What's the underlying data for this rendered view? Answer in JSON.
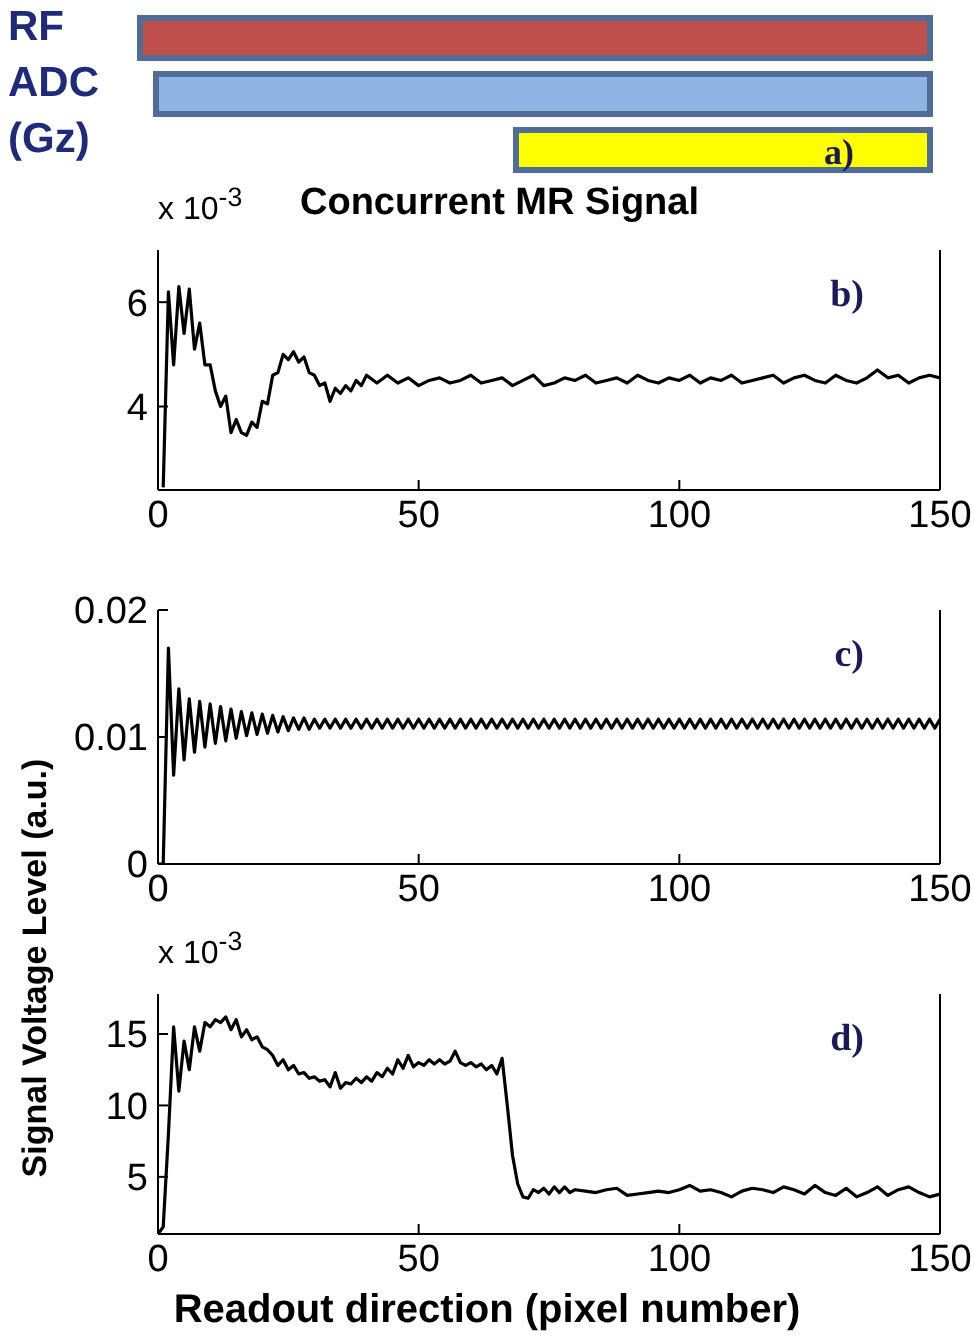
{
  "chart_data": [
    {
      "type": "other",
      "categories": [
        "RF",
        "ADC",
        "(Gz)"
      ],
      "colors": [
        "#c0504d",
        "#8eb4e3",
        "#ffff00"
      ],
      "annotations": [
        "a)"
      ]
    },
    {
      "type": "line",
      "title": "Concurrent MR Signal",
      "annotations": [
        "x 10$^{-3}$",
        "b)"
      ],
      "xlim": [
        0,
        150
      ],
      "xticks": [
        0,
        50,
        100,
        150
      ],
      "ylim": [
        2.4,
        7.0
      ],
      "yticks": [
        4,
        6
      ],
      "series": [
        {
          "color": "#000000",
          "x": [
            1,
            2,
            3,
            4,
            5,
            6,
            7,
            8,
            9,
            10,
            11,
            12,
            13,
            14,
            15,
            16,
            17,
            18,
            19,
            20,
            21,
            22,
            23,
            24,
            25,
            26,
            27,
            28,
            29,
            30,
            31,
            32,
            33,
            34,
            35,
            36,
            37,
            38,
            39,
            40,
            42,
            44,
            46,
            48,
            50,
            52,
            54,
            56,
            58,
            60,
            62,
            64,
            66,
            68,
            70,
            72,
            74,
            76,
            78,
            80,
            82,
            84,
            86,
            88,
            90,
            92,
            94,
            96,
            98,
            100,
            102,
            104,
            106,
            108,
            110,
            112,
            114,
            116,
            118,
            120,
            122,
            124,
            126,
            128,
            130,
            132,
            134,
            136,
            138,
            140,
            142,
            144,
            146,
            148,
            150
          ],
          "values": [
            2.45,
            6.2,
            4.8,
            6.3,
            5.4,
            6.25,
            5.1,
            5.6,
            4.8,
            4.8,
            4.3,
            4.0,
            4.2,
            3.5,
            3.75,
            3.5,
            3.45,
            3.7,
            3.6,
            4.1,
            4.05,
            4.6,
            4.65,
            5.0,
            4.9,
            5.05,
            4.85,
            4.95,
            4.65,
            4.6,
            4.4,
            4.45,
            4.1,
            4.35,
            4.25,
            4.4,
            4.3,
            4.5,
            4.4,
            4.6,
            4.45,
            4.6,
            4.45,
            4.55,
            4.4,
            4.5,
            4.55,
            4.45,
            4.5,
            4.6,
            4.45,
            4.5,
            4.55,
            4.4,
            4.5,
            4.6,
            4.4,
            4.45,
            4.55,
            4.5,
            4.6,
            4.45,
            4.5,
            4.55,
            4.45,
            4.6,
            4.5,
            4.45,
            4.55,
            4.5,
            4.6,
            4.45,
            4.55,
            4.5,
            4.6,
            4.45,
            4.5,
            4.55,
            4.6,
            4.45,
            4.55,
            4.6,
            4.5,
            4.45,
            4.6,
            4.5,
            4.45,
            4.55,
            4.7,
            4.55,
            4.6,
            4.45,
            4.55,
            4.6,
            4.55
          ]
        }
      ]
    },
    {
      "type": "line",
      "annotations": [
        "c)"
      ],
      "xlim": [
        0,
        150
      ],
      "xticks": [
        0,
        50,
        100,
        150
      ],
      "ylim": [
        0,
        0.02
      ],
      "yticks": [
        0,
        0.01,
        0.02
      ],
      "series": [
        {
          "color": "#000000",
          "x": [
            0,
            1,
            2,
            3,
            4,
            5,
            6,
            7,
            8,
            9,
            10,
            11,
            12,
            13,
            14,
            15,
            16,
            17,
            18,
            19,
            20,
            21,
            22,
            23,
            24,
            25,
            26,
            27,
            28,
            29,
            30,
            31,
            32,
            33,
            34,
            35,
            36,
            37,
            38,
            39,
            40,
            41,
            42,
            43,
            44,
            45,
            46,
            47,
            48,
            49,
            50,
            51,
            52,
            53,
            54,
            55,
            56,
            57,
            58,
            59,
            60,
            61,
            62,
            63,
            64,
            65,
            66,
            67,
            68,
            69,
            70,
            71,
            72,
            73,
            74,
            75,
            76,
            77,
            78,
            79,
            80,
            81,
            82,
            83,
            84,
            85,
            86,
            87,
            88,
            89,
            90,
            91,
            92,
            93,
            94,
            95,
            96,
            97,
            98,
            99,
            100,
            101,
            102,
            103,
            104,
            105,
            106,
            107,
            108,
            109,
            110,
            111,
            112,
            113,
            114,
            115,
            116,
            117,
            118,
            119,
            120,
            121,
            122,
            123,
            124,
            125,
            126,
            127,
            128,
            129,
            130,
            131,
            132,
            133,
            134,
            135,
            136,
            137,
            138,
            139,
            140,
            141,
            142,
            143,
            144,
            145,
            146,
            147,
            148,
            149,
            150
          ],
          "values": [
            0,
            0,
            0.017,
            0.007,
            0.0138,
            0.0082,
            0.013,
            0.0088,
            0.0128,
            0.0092,
            0.0126,
            0.0095,
            0.0124,
            0.0097,
            0.0122,
            0.0099,
            0.012,
            0.0101,
            0.0119,
            0.0102,
            0.0118,
            0.0103,
            0.0117,
            0.0104,
            0.0116,
            0.0105,
            0.0115,
            0.0106,
            0.0115,
            0.0106,
            0.0114,
            0.0107,
            0.0114,
            0.0107,
            0.0114,
            0.0107,
            0.0114,
            0.0107,
            0.0114,
            0.0107,
            0.0114,
            0.0107,
            0.0114,
            0.0107,
            0.0114,
            0.0107,
            0.0114,
            0.0107,
            0.0114,
            0.0107,
            0.0114,
            0.0107,
            0.0114,
            0.0107,
            0.0114,
            0.0107,
            0.0114,
            0.0107,
            0.0114,
            0.0107,
            0.0114,
            0.0107,
            0.0114,
            0.0107,
            0.0114,
            0.0107,
            0.0114,
            0.0107,
            0.0114,
            0.0107,
            0.0114,
            0.0107,
            0.0114,
            0.0107,
            0.0114,
            0.0107,
            0.0114,
            0.0107,
            0.0114,
            0.0107,
            0.0114,
            0.0107,
            0.0114,
            0.0107,
            0.0114,
            0.0107,
            0.0114,
            0.0107,
            0.0114,
            0.0107,
            0.0114,
            0.0107,
            0.0114,
            0.0107,
            0.0114,
            0.0107,
            0.0114,
            0.0107,
            0.0114,
            0.0107,
            0.0114,
            0.0107,
            0.0114,
            0.0107,
            0.0114,
            0.0107,
            0.0114,
            0.0107,
            0.0114,
            0.0107,
            0.0114,
            0.0107,
            0.0114,
            0.0107,
            0.0114,
            0.0107,
            0.0114,
            0.0107,
            0.0114,
            0.0107,
            0.0114,
            0.0107,
            0.0114,
            0.0107,
            0.0114,
            0.0107,
            0.0114,
            0.0107,
            0.0114,
            0.0107,
            0.0114,
            0.0107,
            0.0114,
            0.0107,
            0.0114,
            0.0107,
            0.0114,
            0.0107,
            0.0114,
            0.0107,
            0.0114,
            0.0107,
            0.0114,
            0.0107,
            0.0114,
            0.0107,
            0.0114,
            0.0107,
            0.0114,
            0.0107,
            0.0114
          ]
        }
      ]
    },
    {
      "type": "line",
      "xlabel": "Readout direction (pixel number)",
      "ylabel": "Signal Voltage Level (a.u.)",
      "annotations": [
        "x 10$^{-3}$",
        "d)"
      ],
      "xlim": [
        0,
        150
      ],
      "xticks": [
        0,
        50,
        100,
        150
      ],
      "ylim": [
        1,
        17.8
      ],
      "yticks": [
        5,
        10,
        15
      ],
      "series": [
        {
          "color": "#000000",
          "x": [
            0,
            1,
            2,
            3,
            4,
            5,
            6,
            7,
            8,
            9,
            10,
            11,
            12,
            13,
            14,
            15,
            16,
            17,
            18,
            19,
            20,
            21,
            22,
            23,
            24,
            25,
            26,
            27,
            28,
            29,
            30,
            31,
            32,
            33,
            34,
            35,
            36,
            37,
            38,
            39,
            40,
            41,
            42,
            43,
            44,
            45,
            46,
            47,
            48,
            49,
            50,
            51,
            52,
            53,
            54,
            55,
            56,
            57,
            58,
            59,
            60,
            61,
            62,
            63,
            64,
            65,
            66,
            67,
            68,
            69,
            70,
            71,
            72,
            73,
            74,
            75,
            76,
            77,
            78,
            79,
            80,
            82,
            84,
            86,
            88,
            90,
            92,
            94,
            96,
            98,
            100,
            102,
            104,
            106,
            108,
            110,
            112,
            114,
            116,
            118,
            120,
            122,
            124,
            126,
            128,
            130,
            132,
            134,
            136,
            138,
            140,
            142,
            144,
            146,
            148,
            150
          ],
          "values": [
            1.0,
            1.5,
            8,
            15.5,
            11,
            14.5,
            12.5,
            15.5,
            13.8,
            15.8,
            15.5,
            16.0,
            15.8,
            16.2,
            15.3,
            16.0,
            14.8,
            15.3,
            14.6,
            14.8,
            14.1,
            13.9,
            13.5,
            12.8,
            13.2,
            12.5,
            12.8,
            12.2,
            12.3,
            11.9,
            12.0,
            11.7,
            11.8,
            11.3,
            12.3,
            11.2,
            11.6,
            11.5,
            11.9,
            11.6,
            12.0,
            11.7,
            12.3,
            12.0,
            12.6,
            12.2,
            13.2,
            12.6,
            13.5,
            12.7,
            13.0,
            12.8,
            13.2,
            12.9,
            13.2,
            12.9,
            13.1,
            13.8,
            13.0,
            12.8,
            13.0,
            12.7,
            12.9,
            12.5,
            12.8,
            12.2,
            13.3,
            10.0,
            6.5,
            4.5,
            3.6,
            3.5,
            4.1,
            3.9,
            4.2,
            3.8,
            4.3,
            3.9,
            4.3,
            3.9,
            4.1,
            4.0,
            3.9,
            4.1,
            4.2,
            3.7,
            3.8,
            3.9,
            4.0,
            3.9,
            4.1,
            4.4,
            4.0,
            4.1,
            3.9,
            3.6,
            4.0,
            4.2,
            4.1,
            3.9,
            4.3,
            4.1,
            3.8,
            4.4,
            3.9,
            3.7,
            4.2,
            3.6,
            3.9,
            4.3,
            3.7,
            4.1,
            4.3,
            3.9,
            3.6,
            3.8
          ]
        }
      ]
    }
  ]
}
